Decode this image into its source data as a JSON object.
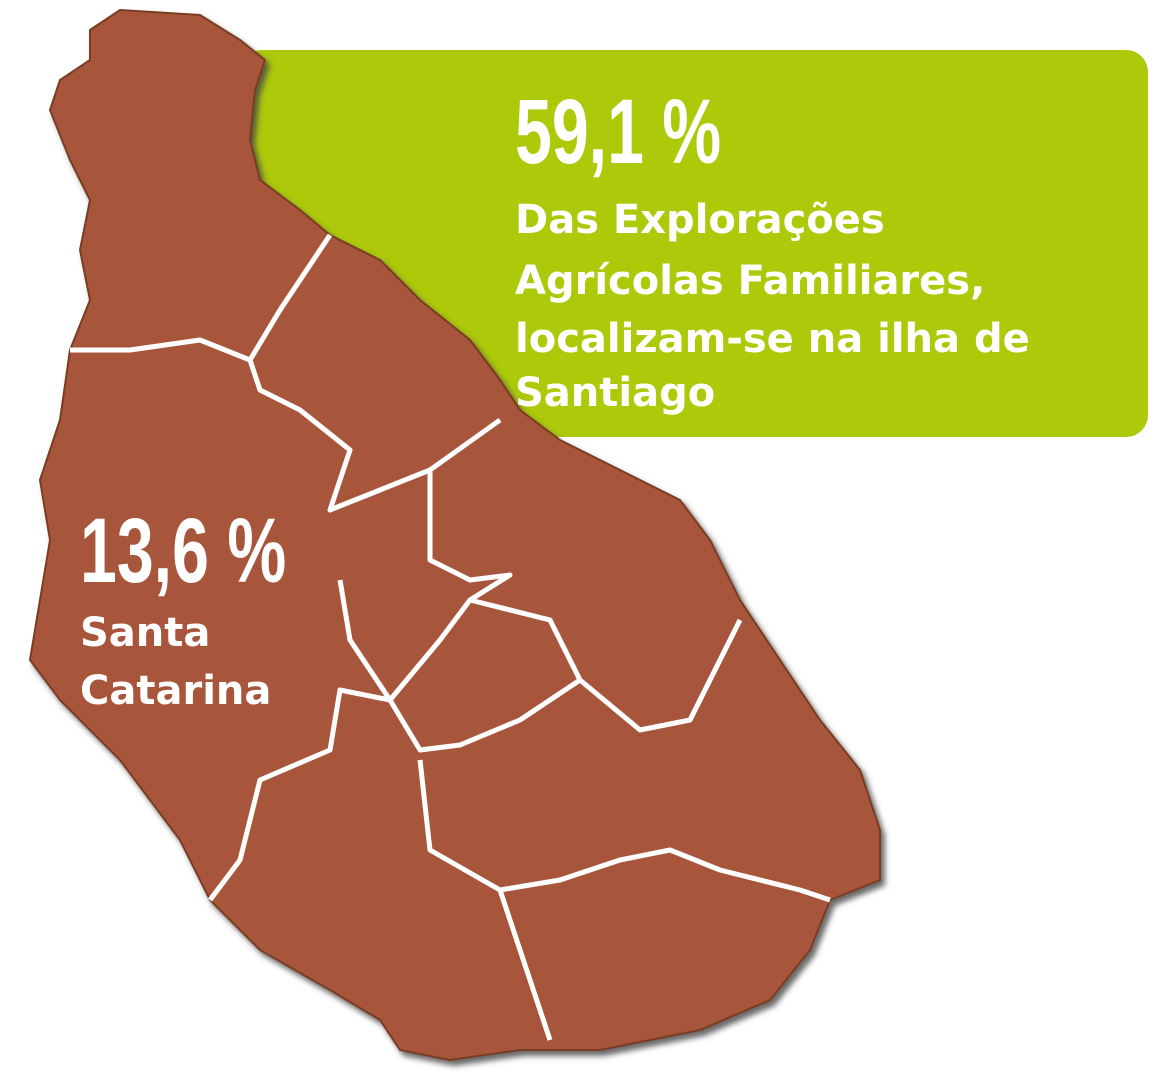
{
  "callout": {
    "percent": "59,1 %",
    "lines": [
      "Das Explorações",
      "Agrícolas Familiares,",
      "localizam-se na ilha de",
      "Santiago"
    ]
  },
  "region": {
    "percent": "13,6 %",
    "lines": [
      "Santa",
      "Catarina"
    ]
  }
}
